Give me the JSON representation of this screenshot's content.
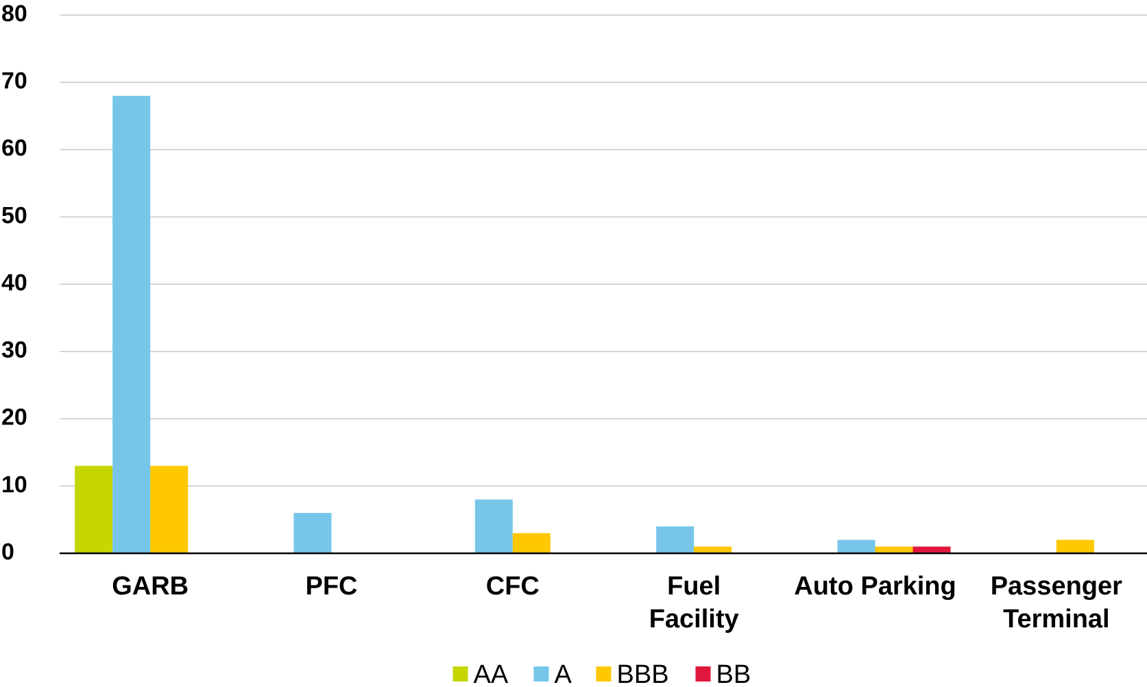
{
  "chart_data": {
    "type": "bar",
    "categories": [
      "GARB",
      "PFC",
      "CFC",
      "Fuel Facility",
      "Auto Parking",
      "Passenger Terminal"
    ],
    "series": [
      {
        "name": "AA",
        "color": "#c5d600",
        "values": [
          13,
          0,
          0,
          0,
          0,
          0
        ]
      },
      {
        "name": "A",
        "color": "#77c6ea",
        "values": [
          68,
          6,
          8,
          4,
          2,
          0
        ]
      },
      {
        "name": "BBB",
        "color": "#ffc800",
        "values": [
          13,
          0,
          3,
          1,
          1,
          2
        ]
      },
      {
        "name": "BB",
        "color": "#e0173c",
        "values": [
          0,
          0,
          0,
          0,
          1,
          0
        ]
      }
    ],
    "ylim": [
      0,
      80
    ],
    "yticks": [
      0,
      10,
      20,
      30,
      40,
      50,
      60,
      70,
      80
    ],
    "grid": true,
    "legend": "bottom"
  }
}
